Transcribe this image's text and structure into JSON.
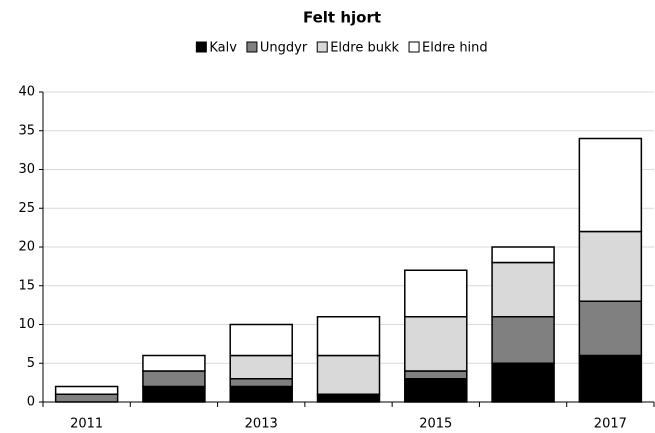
{
  "chart_data": {
    "type": "stacked-bar",
    "title": "Felt hjort",
    "categories": [
      "2011",
      null,
      "2013",
      null,
      "2015",
      null,
      "2017"
    ],
    "series": [
      {
        "name": "Kalv",
        "color": "#000000",
        "values": [
          0,
          2,
          2,
          1,
          3,
          5,
          6
        ]
      },
      {
        "name": "Ungdyr",
        "color": "#808080",
        "values": [
          1,
          2,
          1,
          0,
          1,
          6,
          7
        ]
      },
      {
        "name": "Eldre bukk",
        "color": "#d9d9d9",
        "values": [
          0,
          0,
          3,
          5,
          7,
          7,
          9
        ]
      },
      {
        "name": "Eldre hind",
        "color": "#ffffff",
        "values": [
          1,
          2,
          4,
          5,
          6,
          2,
          12
        ]
      }
    ],
    "ylim": [
      0,
      40
    ],
    "yticks": [
      0,
      5,
      10,
      15,
      20,
      25,
      30,
      35,
      40
    ],
    "grid": true,
    "legend": "top"
  }
}
